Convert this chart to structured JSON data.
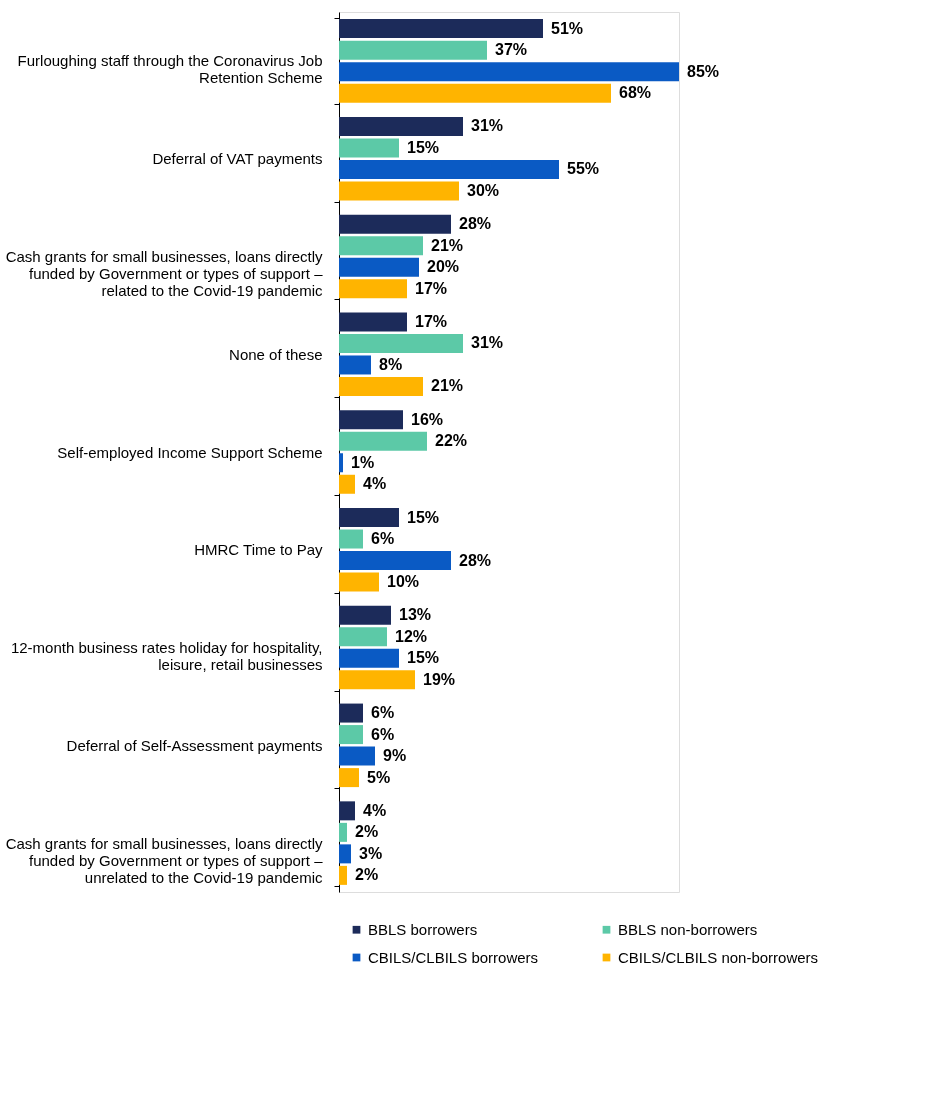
{
  "chart_data": {
    "type": "bar",
    "orientation": "horizontal",
    "legend": "bottom",
    "categories": [
      "Furloughing staff through the Coronavirus Job Retention Scheme",
      "Deferral of VAT payments",
      "Cash grants for small businesses, loans directly funded by Government or types of support – related to the Covid-19 pandemic",
      "None of these",
      "Self-employed Income Support Scheme",
      "HMRC Time to Pay",
      "12-month business rates holiday for hospitality, leisure, retail businesses",
      "Deferral of Self-Assessment payments",
      "Cash grants for small businesses, loans directly funded by Government or types of support – unrelated to the Covid-19 pandemic"
    ],
    "series": [
      {
        "name": "BBLS borrowers",
        "color": "#1c2b5a",
        "values": [
          51,
          31,
          28,
          17,
          16,
          15,
          13,
          6,
          4
        ],
        "value_labels": [
          "51%",
          "31%",
          "28%",
          "17%",
          "16%",
          "15%",
          "13%",
          "6%",
          "4%"
        ]
      },
      {
        "name": "BBLS non-borrowers",
        "color": "#5cc9a7",
        "values": [
          37,
          15,
          21,
          31,
          22,
          6,
          12,
          6,
          2
        ],
        "value_labels": [
          "37%",
          "15%",
          "21%",
          "31%",
          "22%",
          "6%",
          "12%",
          "6%",
          "2%"
        ]
      },
      {
        "name": "CBILS/CLBILS borrowers",
        "color": "#0a5ac4",
        "values": [
          85,
          55,
          20,
          8,
          1,
          28,
          15,
          9,
          3
        ],
        "value_labels": [
          "85%",
          "55%",
          "20%",
          "8%",
          "1%",
          "28%",
          "15%",
          "9%",
          "3%"
        ]
      },
      {
        "name": "CBILS/CLBILS non-borrowers",
        "color": "#ffb400",
        "values": [
          68,
          30,
          17,
          21,
          4,
          10,
          19,
          5,
          2
        ],
        "value_labels": [
          "68%",
          "30%",
          "17%",
          "21%",
          "4%",
          "10%",
          "19%",
          "5%",
          "2%"
        ]
      }
    ]
  }
}
